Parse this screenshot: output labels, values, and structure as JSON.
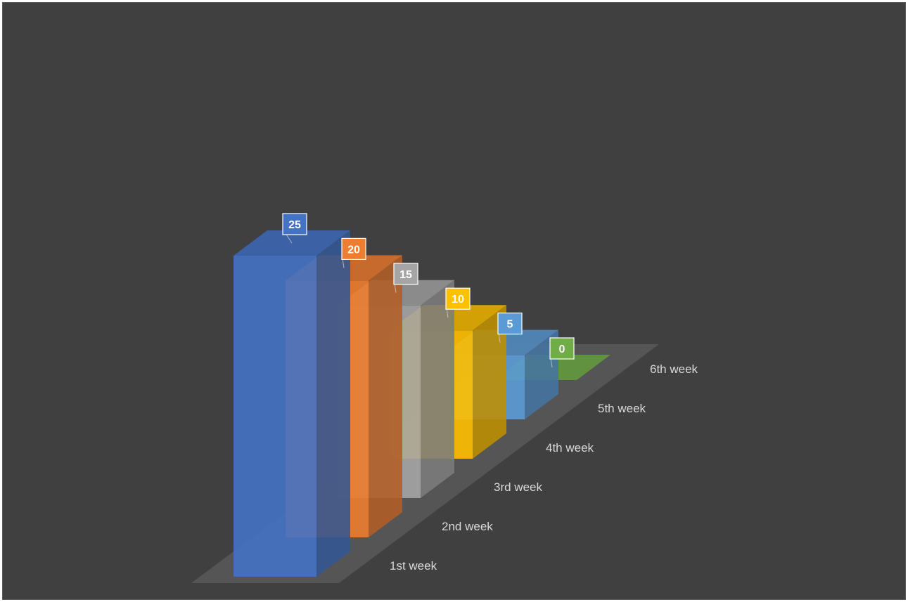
{
  "chart_data": {
    "type": "bar",
    "variant": "3d-column",
    "categories": [
      "1st week",
      "2nd week",
      "3rd week",
      "4th week",
      "5th week",
      "6th week"
    ],
    "values": [
      25,
      20,
      15,
      10,
      5,
      0
    ],
    "colors": [
      "#4472c4",
      "#ed7d31",
      "#a5a5a5",
      "#ffc000",
      "#5b9bd5",
      "#70ad47"
    ],
    "ylim": [
      0,
      25
    ],
    "grid": false,
    "legend": "none",
    "data_labels": true
  },
  "style": {
    "background": "#404040",
    "floor": "#595959",
    "label_color": "#d9d9d9"
  }
}
